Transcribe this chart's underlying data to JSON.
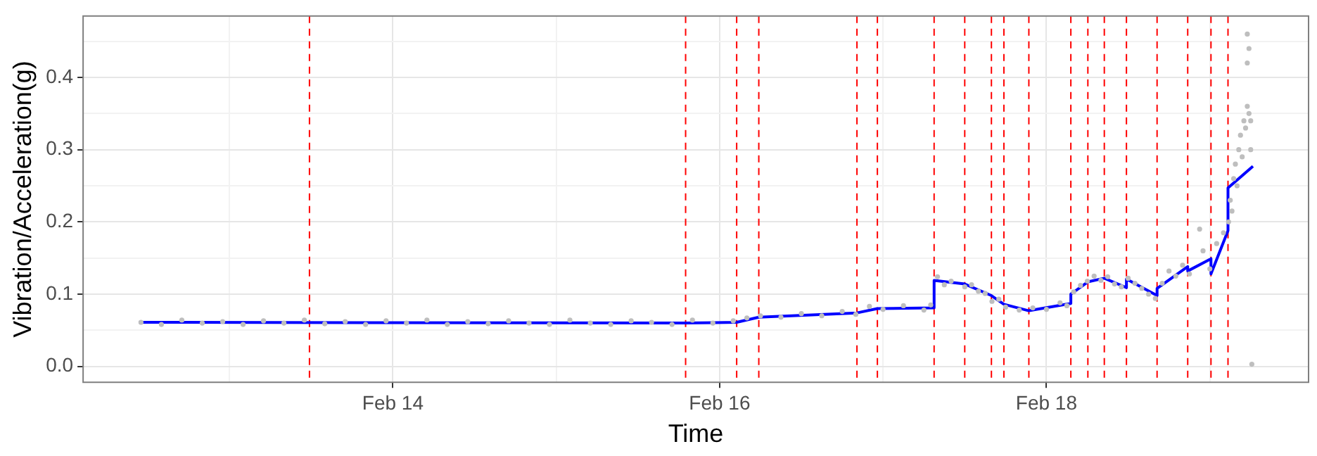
{
  "chart_data": {
    "type": "scatter",
    "xlabel": "Time",
    "ylabel": "Vibration/Acceleration(g)",
    "xlim": [
      "--02-12T02:30",
      "--02-19T14:30"
    ],
    "xticks": [
      {
        "value": "--02-13",
        "label": null
      },
      {
        "value": "--02-14",
        "label": "Feb 14"
      },
      {
        "value": "--02-15",
        "label": null
      },
      {
        "value": "--02-16",
        "label": "Feb 16"
      },
      {
        "value": "--02-17",
        "label": null
      },
      {
        "value": "--02-18",
        "label": "Feb 18"
      },
      {
        "value": "--02-19",
        "label": null
      }
    ],
    "ylim": [
      -0.022,
      0.485
    ],
    "yticks": [
      {
        "value": 0,
        "label": "0.0"
      },
      {
        "value": 0.05,
        "label": null
      },
      0.1,
      {
        "value": 0.15,
        "label": null
      },
      0.2,
      {
        "value": 0.25,
        "label": null
      },
      0.3,
      {
        "value": 0.35,
        "label": null
      },
      0.4,
      {
        "value": 0.45,
        "label": null
      }
    ],
    "grid": true,
    "legend": false,
    "marker": "circle",
    "series": [
      {
        "color": "#bebebe",
        "x": [
          "--02-12T11:00",
          "--02-12T14:00",
          "--02-12T17:00",
          "--02-12T20:00",
          "--02-12T23:00",
          "--02-13T02:00",
          "--02-13T05:00",
          "--02-13T08:00",
          "--02-13T11:00",
          "--02-13T14:00",
          "--02-13T17:00",
          "--02-13T20:00",
          "--02-13T23:00",
          "--02-14T02:00",
          "--02-14T05:00",
          "--02-14T08:00",
          "--02-14T11:00",
          "--02-14T14:00",
          "--02-14T17:00",
          "--02-14T20:00",
          "--02-14T23:00",
          "--02-15T02:00",
          "--02-15T05:00",
          "--02-15T08:00",
          "--02-15T11:00",
          "--02-15T14:00",
          "--02-15T17:00",
          "--02-15T20:00",
          "--02-15T23:00",
          "--02-16T02:00",
          "--02-16T04:00",
          "--02-16T06:00",
          "--02-16T09:00",
          "--02-16T12:00",
          "--02-16T15:00",
          "--02-16T18:00",
          "--02-16T20:00",
          "--02-16T22:00",
          "--02-17T00:00",
          "--02-17T03:00",
          "--02-17T06:00",
          "--02-17T07:00",
          "--02-17T08:00",
          "--02-17T09:00",
          "--02-17T10:00",
          "--02-17T12:00",
          "--02-17T13:00",
          "--02-17T14:00",
          "--02-17T15:00",
          "--02-17T16:00",
          "--02-17T17:00",
          "--02-17T18:00",
          "--02-17T20:00",
          "--02-17T22:00",
          "--02-18T00:00",
          "--02-18T02:00",
          "--02-18T03:00",
          "--02-18T04:00",
          "--02-18T05:00",
          "--02-18T06:00",
          "--02-18T07:00",
          "--02-18T08:00",
          "--02-18T09:00",
          "--02-18T10:00",
          "--02-18T11:00",
          "--02-18T12:00",
          "--02-18T13:00",
          "--02-18T14:00",
          "--02-18T15:00",
          "--02-18T16:00",
          "--02-18T17:00",
          "--02-18T18:00",
          "--02-18T19:00",
          "--02-18T20:00",
          "--02-18T21:00",
          "--02-18T22:30",
          "--02-18T23:00",
          "--02-19T00:00",
          "--02-19T01:00",
          "--02-19T02:00",
          "--02-19T02:45",
          "--02-19T03:00",
          "--02-19T03:15",
          "--02-19T03:30",
          "--02-19T03:45",
          "--02-19T04:00",
          "--02-19T04:15",
          "--02-19T04:30",
          "--02-19T04:45",
          "--02-19T05:00",
          "--02-19T05:15",
          "--02-19T05:30",
          "--02-19T05:30",
          "--02-19T05:30",
          "--02-19T05:45",
          "--02-19T05:45",
          "--02-19T06:00",
          "--02-19T06:00",
          "--02-19T06:10"
        ],
        "values": [
          0.061,
          0.058,
          0.064,
          0.06,
          0.062,
          0.058,
          0.063,
          0.06,
          0.064,
          0.059,
          0.062,
          0.058,
          0.063,
          0.06,
          0.064,
          0.058,
          0.062,
          0.059,
          0.063,
          0.06,
          0.058,
          0.064,
          0.06,
          0.058,
          0.063,
          0.061,
          0.058,
          0.064,
          0.06,
          0.063,
          0.067,
          0.07,
          0.068,
          0.073,
          0.07,
          0.076,
          0.072,
          0.083,
          0.079,
          0.084,
          0.078,
          0.085,
          0.124,
          0.113,
          0.118,
          0.11,
          0.113,
          0.104,
          0.101,
          0.09,
          0.093,
          0.082,
          0.078,
          0.081,
          0.079,
          0.088,
          0.084,
          0.103,
          0.112,
          0.118,
          0.125,
          0.119,
          0.124,
          0.114,
          0.11,
          0.122,
          0.115,
          0.108,
          0.1,
          0.094,
          0.115,
          0.132,
          0.125,
          0.14,
          0.128,
          0.19,
          0.16,
          0.135,
          0.17,
          0.185,
          0.2,
          0.23,
          0.215,
          0.26,
          0.28,
          0.25,
          0.3,
          0.32,
          0.29,
          0.34,
          0.33,
          0.36,
          0.46,
          0.42,
          0.35,
          0.44,
          0.34,
          0.3,
          0.003
        ]
      },
      {
        "type": "line",
        "color": "#0000ff",
        "marker": "none",
        "x": [
          "--02-12T10:40",
          "--02-15T19:00",
          "--02-16T02:30",
          "--02-16T05:45",
          "--02-16T20:10",
          "--02-16T23:10",
          "--02-17T07:30",
          "--02-17T07:30",
          "--02-17T12:00",
          "--02-17T15:55",
          "--02-17T17:45",
          "--02-17T21:25",
          "--02-18T03:35",
          "--02-18T03:35",
          "--02-18T06:05",
          "--02-18T08:30",
          "--02-18T11:45",
          "--02-18T11:45",
          "--02-18T16:15",
          "--02-18T16:15",
          "--02-18T20:45",
          "--02-18T20:45",
          "--02-19T00:10",
          "--02-19T00:10",
          "--02-19T02:40",
          "--02-19T02:40",
          "--02-19T06:20"
        ],
        "values": [
          0.061,
          0.06,
          0.061,
          0.068,
          0.074,
          0.08,
          0.081,
          0.119,
          0.114,
          0.098,
          0.086,
          0.077,
          0.087,
          0.1,
          0.117,
          0.122,
          0.109,
          0.121,
          0.098,
          0.108,
          0.138,
          0.132,
          0.149,
          0.128,
          0.188,
          0.247,
          0.277
        ]
      }
    ],
    "ref_lines": [
      {
        "axis": "x",
        "value": "--02-13T11:45",
        "color": "#ff0000",
        "line_style": "dashed"
      },
      {
        "axis": "x",
        "value": "--02-15T19:00",
        "color": "#ff0000",
        "line_style": "dashed"
      },
      {
        "axis": "x",
        "value": "--02-16T02:30",
        "color": "#ff0000",
        "line_style": "dashed"
      },
      {
        "axis": "x",
        "value": "--02-16T05:45",
        "color": "#ff0000",
        "line_style": "dashed"
      },
      {
        "axis": "x",
        "value": "--02-16T20:10",
        "color": "#ff0000",
        "line_style": "dashed"
      },
      {
        "axis": "x",
        "value": "--02-16T23:10",
        "color": "#ff0000",
        "line_style": "dashed"
      },
      {
        "axis": "x",
        "value": "--02-17T07:30",
        "color": "#ff0000",
        "line_style": "dashed"
      },
      {
        "axis": "x",
        "value": "--02-17T12:00",
        "color": "#ff0000",
        "line_style": "dashed"
      },
      {
        "axis": "x",
        "value": "--02-17T15:55",
        "color": "#ff0000",
        "line_style": "dashed"
      },
      {
        "axis": "x",
        "value": "--02-17T17:45",
        "color": "#ff0000",
        "line_style": "dashed"
      },
      {
        "axis": "x",
        "value": "--02-17T21:25",
        "color": "#ff0000",
        "line_style": "dashed"
      },
      {
        "axis": "x",
        "value": "--02-18T03:35",
        "color": "#ff0000",
        "line_style": "dashed"
      },
      {
        "axis": "x",
        "value": "--02-18T06:05",
        "color": "#ff0000",
        "line_style": "dashed"
      },
      {
        "axis": "x",
        "value": "--02-18T08:30",
        "color": "#ff0000",
        "line_style": "dashed"
      },
      {
        "axis": "x",
        "value": "--02-18T11:45",
        "color": "#ff0000",
        "line_style": "dashed"
      },
      {
        "axis": "x",
        "value": "--02-18T16:15",
        "color": "#ff0000",
        "line_style": "dashed"
      },
      {
        "axis": "x",
        "value": "--02-18T20:45",
        "color": "#ff0000",
        "line_style": "dashed"
      },
      {
        "axis": "x",
        "value": "--02-19T00:10",
        "color": "#ff0000",
        "line_style": "dashed"
      },
      {
        "axis": "x",
        "value": "--02-19T02:40",
        "color": "#ff0000",
        "line_style": "dashed"
      }
    ]
  }
}
